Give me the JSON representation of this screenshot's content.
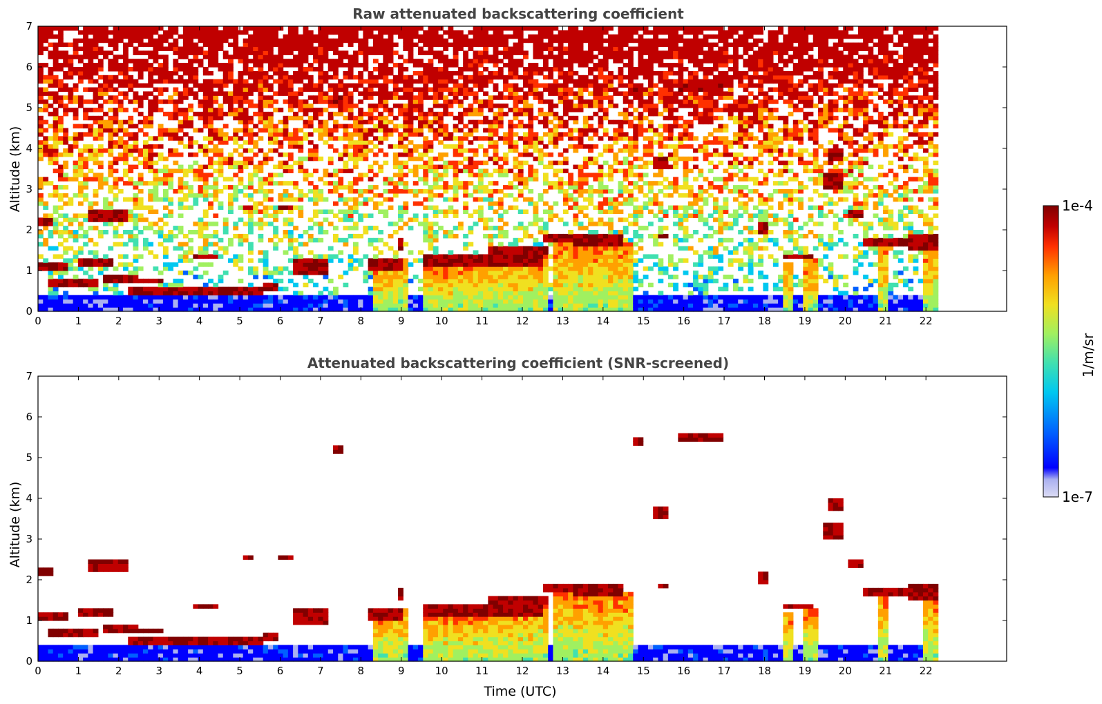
{
  "colors": {
    "colormap": [
      "#dcdcf4",
      "#aab0f0",
      "#0000ff",
      "#0060ff",
      "#00c8f0",
      "#40e0b0",
      "#a0f060",
      "#f0e020",
      "#ffa000",
      "#ff3000",
      "#c00000",
      "#800000"
    ],
    "text": "#000000",
    "title": "#444444"
  },
  "chart_data": [
    {
      "type": "heatmap",
      "title": "Raw attenuated backscattering coefficient",
      "xlabel": "",
      "ylabel": "Altitude (km)",
      "xlim": [
        0,
        24
      ],
      "ylim": [
        0,
        7
      ],
      "xticks": [
        "0",
        "1",
        "2",
        "3",
        "4",
        "5",
        "6",
        "7",
        "8",
        "9",
        "10",
        "11",
        "12",
        "13",
        "14",
        "15",
        "16",
        "17",
        "18",
        "19",
        "20",
        "21",
        "22"
      ],
      "yticks": [
        "0",
        "1",
        "2",
        "3",
        "4",
        "5",
        "6",
        "7"
      ],
      "data_end_time": 22.3,
      "colorscale": "log10",
      "cloud_layers": [
        {
          "t": [
            0.0,
            0.35
          ],
          "alt": [
            2.1,
            2.3
          ]
        },
        {
          "t": [
            1.25,
            2.2
          ],
          "alt": [
            2.25,
            2.45
          ]
        },
        {
          "t": [
            5.1,
            5.35
          ],
          "alt": [
            2.5,
            2.65
          ]
        },
        {
          "t": [
            6.0,
            6.3
          ],
          "alt": [
            2.5,
            2.65
          ]
        },
        {
          "t": [
            0.0,
            0.7
          ],
          "alt": [
            1.05,
            1.2
          ]
        },
        {
          "t": [
            1.0,
            1.9
          ],
          "alt": [
            1.1,
            1.25
          ]
        },
        {
          "t": [
            3.9,
            4.4
          ],
          "alt": [
            1.3,
            1.45
          ]
        },
        {
          "t": [
            0.2,
            1.5
          ],
          "alt": [
            0.65,
            0.85
          ]
        },
        {
          "t": [
            1.6,
            2.5
          ],
          "alt": [
            0.75,
            0.95
          ]
        },
        {
          "t": [
            2.3,
            3.1
          ],
          "alt": [
            0.7,
            0.85
          ]
        },
        {
          "t": [
            2.2,
            5.6
          ],
          "alt": [
            0.38,
            0.55
          ]
        },
        {
          "t": [
            5.6,
            5.9
          ],
          "alt": [
            0.5,
            0.7
          ]
        },
        {
          "t": [
            7.3,
            7.6
          ],
          "alt": [
            5.1,
            5.35
          ]
        },
        {
          "t": [
            14.75,
            14.95
          ],
          "alt": [
            5.35,
            5.45
          ]
        },
        {
          "t": [
            15.8,
            17.0
          ],
          "alt": [
            5.38,
            5.58
          ]
        },
        {
          "t": [
            15.3,
            15.6
          ],
          "alt": [
            3.55,
            3.8
          ]
        },
        {
          "t": [
            19.6,
            19.9
          ],
          "alt": [
            3.7,
            4.0
          ]
        },
        {
          "t": [
            19.4,
            20.0
          ],
          "alt": [
            3.0,
            3.4
          ]
        },
        {
          "t": [
            20.1,
            20.5
          ],
          "alt": [
            2.3,
            2.55
          ]
        },
        {
          "t": [
            17.8,
            18.1
          ],
          "alt": [
            1.95,
            2.15
          ]
        },
        {
          "t": [
            15.4,
            15.6
          ],
          "alt": [
            1.8,
            1.95
          ]
        },
        {
          "t": [
            6.3,
            7.2
          ],
          "alt": [
            0.9,
            1.3
          ]
        },
        {
          "t": [
            8.2,
            9.1
          ],
          "alt": [
            1.05,
            1.3
          ]
        },
        {
          "t": [
            8.9,
            9.1
          ],
          "alt": [
            1.5,
            1.8
          ]
        },
        {
          "t": [
            9.6,
            12.5
          ],
          "alt": [
            1.1,
            1.35
          ]
        },
        {
          "t": [
            11.2,
            12.6
          ],
          "alt": [
            1.4,
            1.6
          ]
        },
        {
          "t": [
            12.5,
            13.3
          ],
          "alt": [
            1.7,
            1.95
          ]
        },
        {
          "t": [
            13.3,
            14.5
          ],
          "alt": [
            1.6,
            1.85
          ]
        },
        {
          "t": [
            18.4,
            19.2
          ],
          "alt": [
            1.3,
            1.45
          ]
        },
        {
          "t": [
            20.5,
            21.5
          ],
          "alt": [
            1.6,
            1.8
          ]
        },
        {
          "t": [
            21.5,
            22.3
          ],
          "alt": [
            1.55,
            1.95
          ]
        }
      ],
      "precipitation_shafts": [
        {
          "t": [
            8.3,
            8.9
          ],
          "top": 1.2
        },
        {
          "t": [
            8.9,
            9.2
          ],
          "top": 1.3
        },
        {
          "t": [
            9.6,
            11.2
          ],
          "top": 1.15
        },
        {
          "t": [
            11.2,
            12.6
          ],
          "top": 1.35
        },
        {
          "t": [
            12.8,
            13.2
          ],
          "top": 1.7
        },
        {
          "t": [
            13.2,
            14.0
          ],
          "top": 1.6
        },
        {
          "t": [
            14.0,
            14.7
          ],
          "top": 1.7
        },
        {
          "t": [
            18.45,
            18.65
          ],
          "top": 1.2
        },
        {
          "t": [
            19.0,
            19.35
          ],
          "top": 1.3
        },
        {
          "t": [
            20.8,
            21.05
          ],
          "top": 1.6
        },
        {
          "t": [
            21.25,
            21.35
          ],
          "top": 1.5
        },
        {
          "t": [
            21.9,
            22.3
          ],
          "top": 1.7
        }
      ]
    },
    {
      "type": "heatmap",
      "title": "Attenuated backscattering coefficient (SNR-screened)",
      "xlabel": "Time (UTC)",
      "ylabel": "Altitude (km)",
      "xlim": [
        0,
        24
      ],
      "ylim": [
        0,
        7
      ],
      "xticks": [
        "0",
        "1",
        "2",
        "3",
        "4",
        "5",
        "6",
        "7",
        "8",
        "9",
        "10",
        "11",
        "12",
        "13",
        "14",
        "15",
        "16",
        "17",
        "18",
        "19",
        "20",
        "21",
        "22"
      ],
      "yticks": [
        "0",
        "1",
        "2",
        "3",
        "4",
        "5",
        "6",
        "7"
      ],
      "data_end_time": 22.3,
      "colorscale": "log10",
      "screening": "low-SNR pixels removed (white)"
    }
  ],
  "colorbar": {
    "max_label": "1e-4",
    "min_label": "1e-7",
    "label": "1/m/sr"
  }
}
